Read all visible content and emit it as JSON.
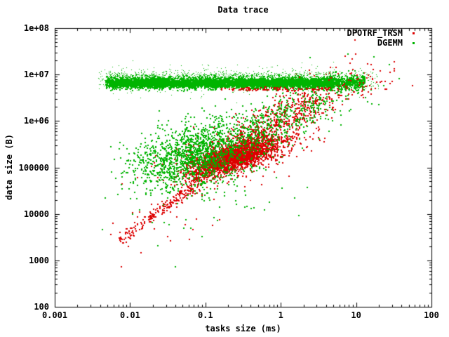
{
  "chart_data": {
    "type": "scatter",
    "title": "Data trace",
    "xlabel": "tasks size (ms)",
    "ylabel": "data size (B)",
    "xscale": "log",
    "yscale": "log",
    "xlim": [
      0.001,
      100
    ],
    "ylim": [
      100,
      100000000
    ],
    "xticks": [
      {
        "v": 0.001,
        "label": "0.001"
      },
      {
        "v": 0.01,
        "label": "0.01"
      },
      {
        "v": 0.1,
        "label": "0.1"
      },
      {
        "v": 1,
        "label": "1"
      },
      {
        "v": 10,
        "label": "10"
      },
      {
        "v": 100,
        "label": "100"
      }
    ],
    "yticks": [
      {
        "v": 100,
        "label": "100"
      },
      {
        "v": 1000,
        "label": "1000"
      },
      {
        "v": 10000,
        "label": "10000"
      },
      {
        "v": 100000,
        "label": "100000"
      },
      {
        "v": 1000000,
        "label": "1e+06"
      },
      {
        "v": 10000000,
        "label": "1e+07"
      },
      {
        "v": 100000000,
        "label": "1e+08"
      }
    ],
    "grid": false,
    "legend_position": "top-right-inside",
    "axis_color": "#000000",
    "background_color": "#ffffff",
    "point_style": "dot",
    "series": [
      {
        "name": "DPOTRF_TRSM",
        "color": "#dd0000",
        "clusters": [
          {
            "desc": "low-ridge",
            "shape": "line",
            "n": 240,
            "x0": -2.15,
            "x1": -1.0,
            "slope": 1.25,
            "intercept": 6.08,
            "sy": 0.09
          },
          {
            "desc": "dense-core",
            "shape": "gauss",
            "n": 2200,
            "cx": -0.62,
            "cy": 5.22,
            "sx": 0.28,
            "sy": 0.2,
            "rho": 0.72
          },
          {
            "desc": "core-halo",
            "shape": "gauss",
            "n": 500,
            "cx": -0.55,
            "cy": 5.3,
            "sx": 0.45,
            "sy": 0.33,
            "rho": 0.5
          },
          {
            "desc": "upper-swath",
            "shape": "gauss",
            "n": 650,
            "cx": -0.05,
            "cy": 5.95,
            "sx": 0.45,
            "sy": 0.48,
            "rho": 0.82
          },
          {
            "desc": "low-scatter",
            "shape": "gauss",
            "n": 22,
            "cx": -1.35,
            "cy": 3.9,
            "sx": 0.5,
            "sy": 0.45,
            "rho": 0.5
          },
          {
            "desc": "band-bottom-edge",
            "shape": "band",
            "n": 100,
            "x0": -0.8,
            "x1": 0.65,
            "cy": 6.685,
            "sy": 0.02,
            "z": 1
          },
          {
            "desc": "band-right",
            "shape": "gauss",
            "n": 70,
            "cx": 0.95,
            "cy": 6.8,
            "sx": 0.3,
            "sy": 0.25,
            "rho": 0.3,
            "z": 1
          }
        ],
        "extra_points_log10": [
          [
            -2.12,
            2.86
          ]
        ]
      },
      {
        "name": "DGEMM",
        "color": "#00b400",
        "clusters": [
          {
            "desc": "band-core",
            "shape": "band",
            "n": 5200,
            "x0": -2.32,
            "x1": 0.68,
            "cy": 6.82,
            "sy": 0.055
          },
          {
            "desc": "band-tail",
            "shape": "band",
            "n": 430,
            "x0": 0.62,
            "x1": 1.12,
            "cy": 6.83,
            "sy": 0.075
          },
          {
            "desc": "band-fringe",
            "shape": "band",
            "n": 850,
            "x0": -2.42,
            "x1": 1.32,
            "cy": 6.88,
            "sy": 0.13,
            "ps": 1
          },
          {
            "desc": "band-top-sparkle",
            "shape": "band",
            "n": 600,
            "x0": -2.3,
            "x1": 0.7,
            "cy": 6.97,
            "sy": 0.045,
            "ps": 1
          },
          {
            "desc": "mid-cloud",
            "shape": "gauss",
            "n": 1500,
            "cx": -1.12,
            "cy": 5.3,
            "sx": 0.42,
            "sy": 0.4,
            "rho": 0.35
          },
          {
            "desc": "diag",
            "shape": "gauss",
            "n": 520,
            "cx": 0.0,
            "cy": 6.0,
            "sx": 0.5,
            "sy": 0.45,
            "rho": 0.8
          },
          {
            "desc": "low-scatter",
            "shape": "gauss",
            "n": 40,
            "cx": -0.85,
            "cy": 4.2,
            "sx": 0.55,
            "sy": 0.5,
            "rho": 0.3
          }
        ],
        "extra_points_log10": [
          [
            -1.4,
            2.86
          ]
        ]
      }
    ]
  }
}
